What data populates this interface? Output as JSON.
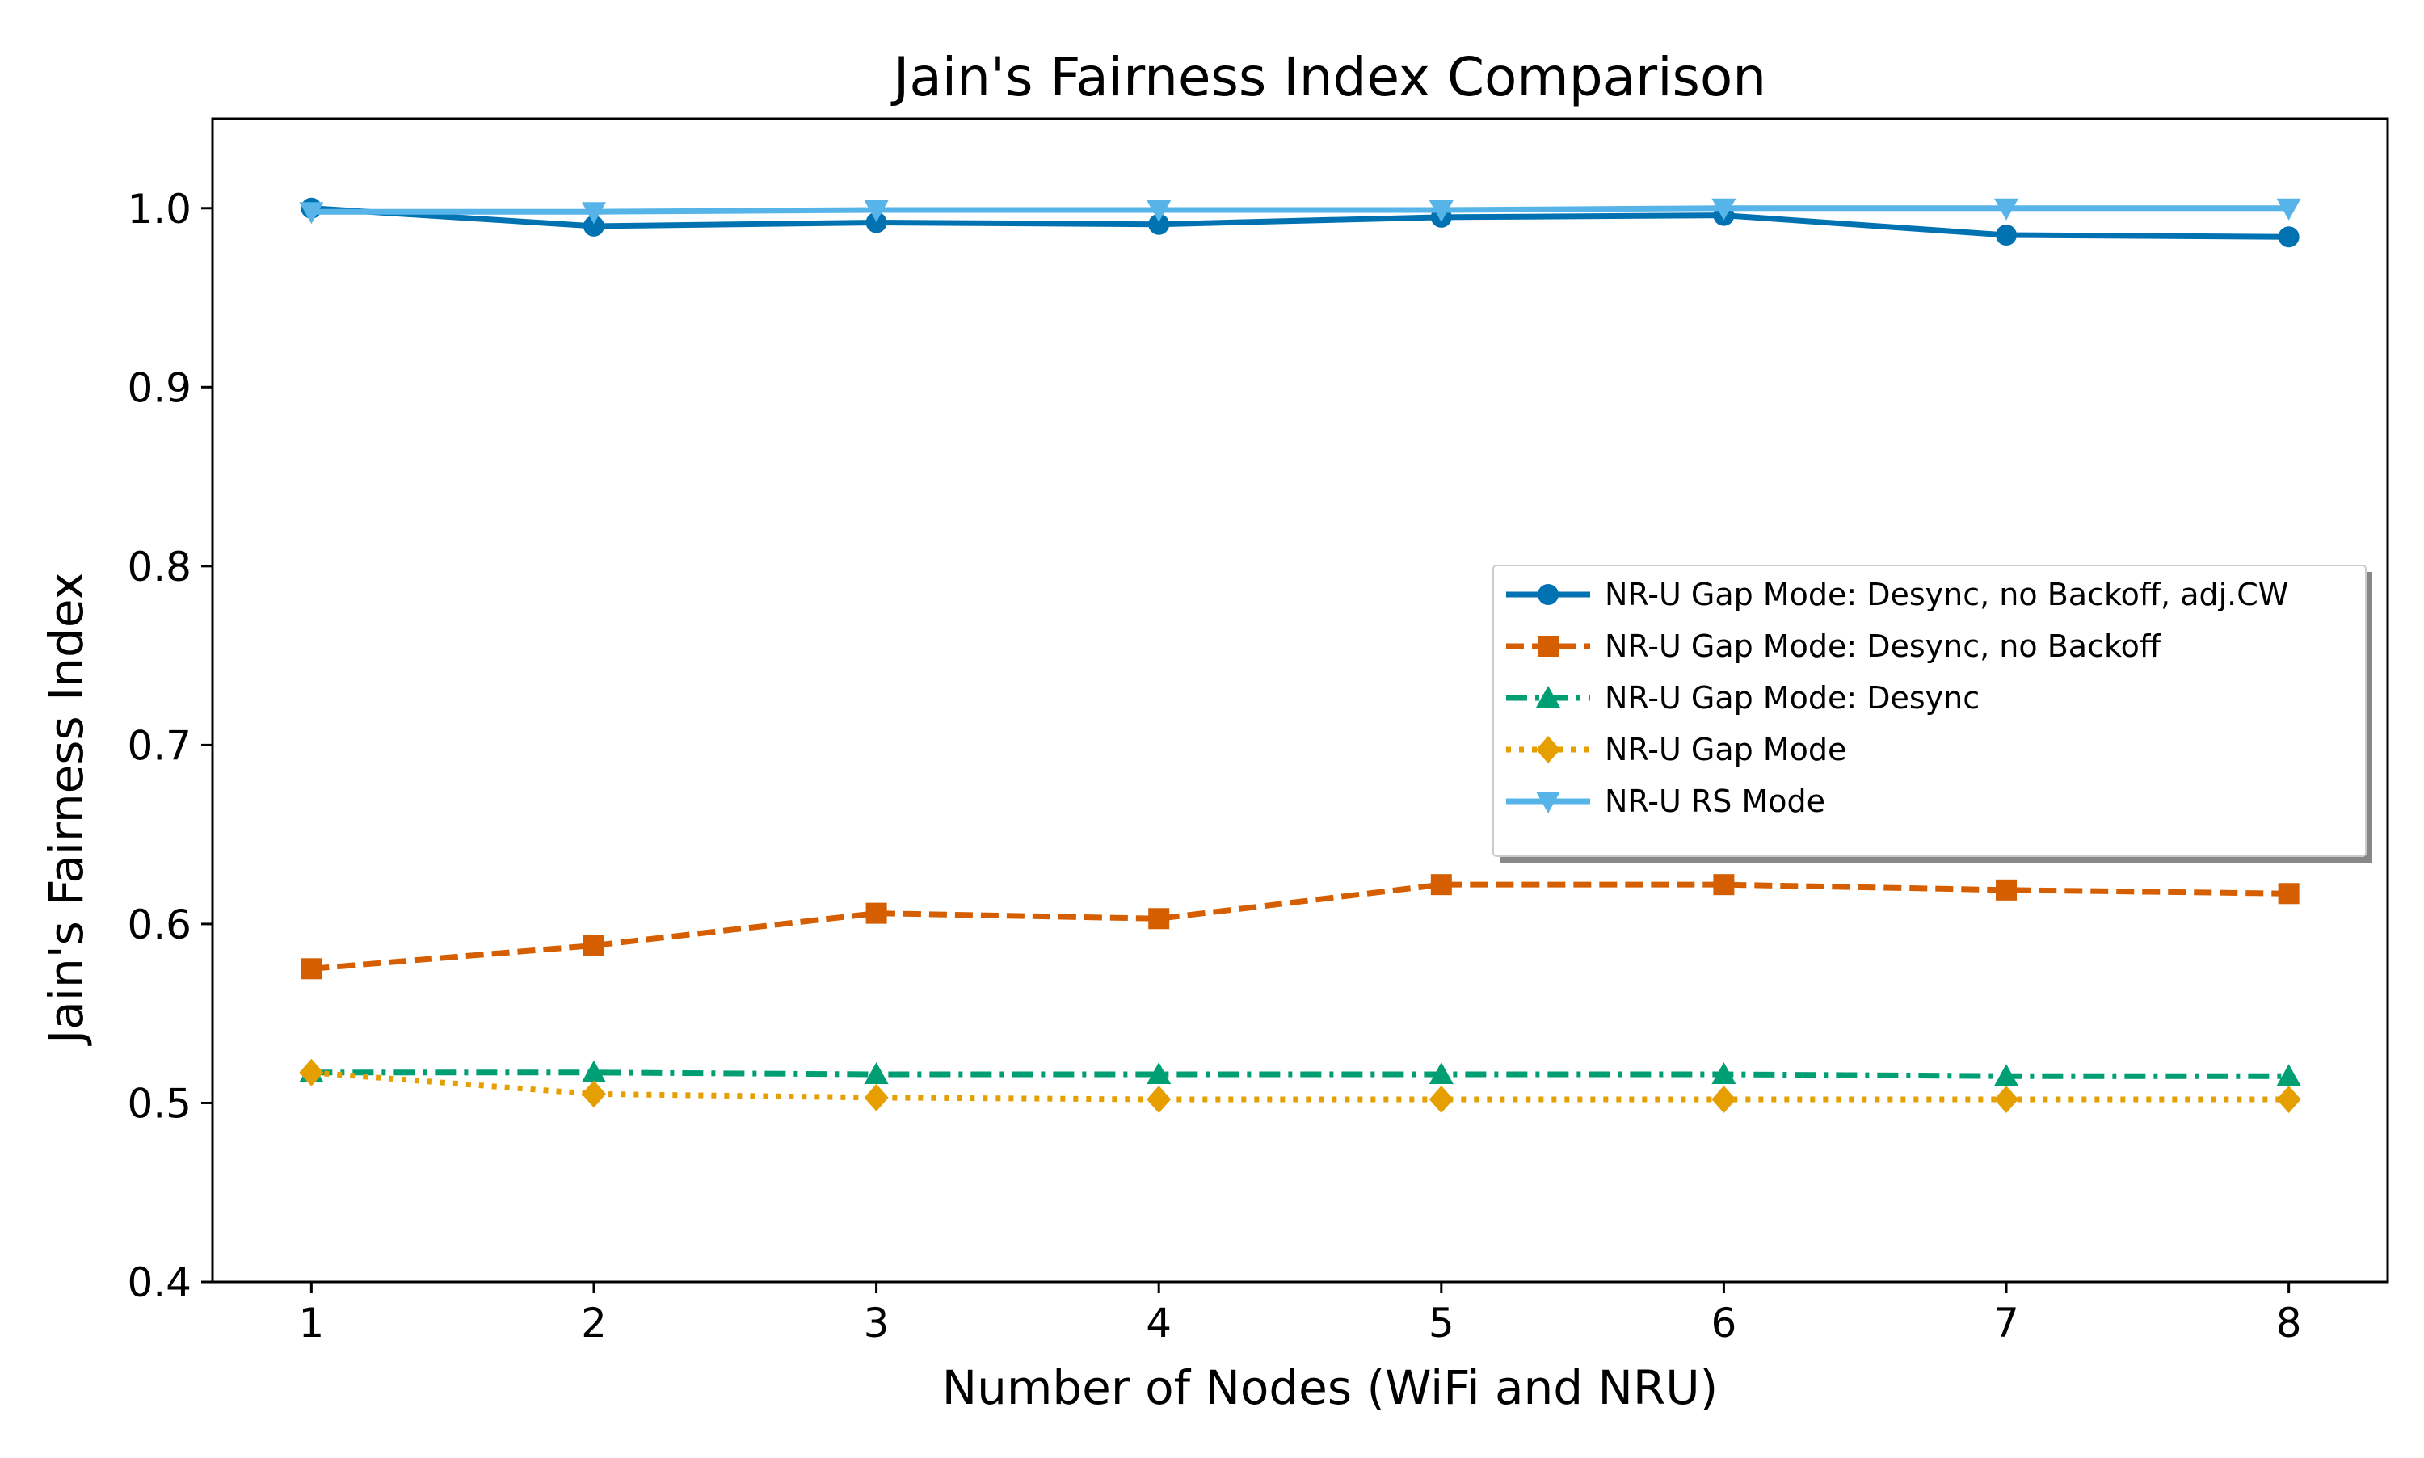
{
  "chart_data": {
    "type": "line",
    "title": "Jain's Fairness Index Comparison",
    "xlabel": "Number of Nodes (WiFi and NRU)",
    "ylabel": "Jain's Fairness Index",
    "x": [
      1,
      2,
      3,
      4,
      5,
      6,
      7,
      8
    ],
    "xlim": [
      0.65,
      8.35
    ],
    "ylim": [
      0.4,
      1.05
    ],
    "xticks": [
      "1",
      "2",
      "3",
      "4",
      "5",
      "6",
      "7",
      "8"
    ],
    "yticks": [
      "0.4",
      "0.5",
      "0.6",
      "0.7",
      "0.8",
      "0.9",
      "1.0"
    ],
    "grid": false,
    "legend_position": "center-right",
    "series": [
      {
        "name": "NR-U Gap Mode: Desync, no Backoff, adj.CW",
        "values": [
          1.0,
          0.99,
          0.992,
          0.991,
          0.995,
          0.996,
          0.985,
          0.984
        ],
        "color": "#0072b2",
        "marker": "circle",
        "line_style": "solid"
      },
      {
        "name": "NR-U Gap Mode: Desync, no Backoff",
        "values": [
          0.575,
          0.588,
          0.606,
          0.603,
          0.622,
          0.622,
          0.619,
          0.617
        ],
        "color": "#d55e00",
        "marker": "square",
        "line_style": "dashed"
      },
      {
        "name": "NR-U Gap Mode: Desync",
        "values": [
          0.517,
          0.517,
          0.516,
          0.516,
          0.516,
          0.516,
          0.515,
          0.515
        ],
        "color": "#009e73",
        "marker": "triangle-up",
        "line_style": "dashdot"
      },
      {
        "name": "NR-U Gap Mode",
        "values": [
          0.517,
          0.505,
          0.503,
          0.502,
          0.502,
          0.502,
          0.502,
          0.502
        ],
        "color": "#e69f00",
        "marker": "diamond",
        "line_style": "dotted"
      },
      {
        "name": "NR-U RS Mode",
        "values": [
          0.998,
          0.998,
          0.999,
          0.999,
          0.999,
          1.0,
          1.0,
          1.0
        ],
        "color": "#56b4e9",
        "marker": "triangle-down",
        "line_style": "solid"
      }
    ]
  }
}
